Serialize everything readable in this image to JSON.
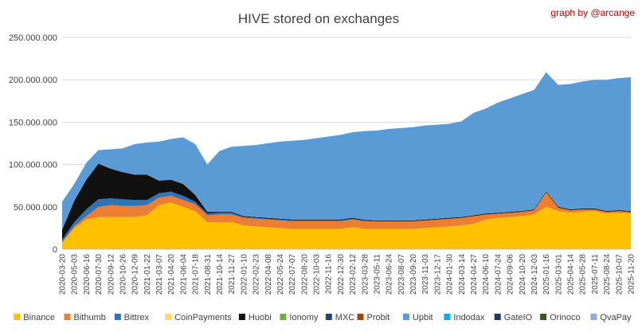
{
  "chart_data": {
    "type": "area",
    "stacked": true,
    "title": "HIVE stored on exchanges",
    "credit": "graph by @arcange",
    "ylim": [
      0,
      250000000
    ],
    "yticks": [
      {
        "value": 0,
        "label": "0"
      },
      {
        "value": 50000000,
        "label": "50.000.000"
      },
      {
        "value": 100000000,
        "label": "100.000.000"
      },
      {
        "value": 150000000,
        "label": "150.000.000"
      },
      {
        "value": 200000000,
        "label": "200.000.000"
      },
      {
        "value": 250000000,
        "label": "250.000.000"
      }
    ],
    "grid": true,
    "legend_position": "bottom",
    "x": [
      "2020-03-20",
      "2020-05-03",
      "2020-06-16",
      "2020-07-30",
      "2020-09-12",
      "2020-10-26",
      "2020-12-09",
      "2021-01-22",
      "2021-03-07",
      "2021-04-20",
      "2021-06-04",
      "2021-07-18",
      "2021-08-31",
      "2021-10-14",
      "2021-11-27",
      "2022-01-10",
      "2022-02-23",
      "2022-04-08",
      "2022-05-24",
      "2022-07-07",
      "2022-08-20",
      "2022-10-03",
      "2022-11-16",
      "2022-12-30",
      "2023-02-12",
      "2023-03-28",
      "2023-05-11",
      "2023-06-24",
      "2023-08-07",
      "2023-09-20",
      "2023-11-03",
      "2023-12-17",
      "2024-01-30",
      "2024-03-14",
      "2024-04-27",
      "2024-06-10",
      "2024-07-24",
      "2024-09-06",
      "2024-10-20",
      "2024-12-03",
      "2025-01-16",
      "2025-03-01",
      "2025-04-14",
      "2025-05-28",
      "2025-07-11",
      "2025-08-24",
      "2025-10-07",
      "2025-11-20"
    ],
    "series": [
      {
        "name": "Binance",
        "color": "#ffc000",
        "values": [
          8000000,
          25000000,
          35000000,
          38000000,
          38000000,
          38000000,
          38000000,
          40000000,
          52000000,
          55000000,
          50000000,
          45000000,
          32000000,
          32000000,
          32000000,
          28000000,
          27000000,
          26000000,
          25000000,
          24000000,
          24000000,
          24000000,
          24000000,
          24000000,
          26000000,
          24000000,
          24000000,
          24000000,
          24000000,
          24000000,
          25000000,
          26000000,
          27000000,
          28000000,
          30000000,
          35000000,
          37000000,
          38000000,
          39000000,
          41000000,
          50000000,
          45000000,
          43000000,
          44000000,
          45000000,
          42000000,
          43000000,
          42000000
        ]
      },
      {
        "name": "Bithumb",
        "color": "#ed7d31",
        "values": [
          0,
          2000000,
          4000000,
          12000000,
          14000000,
          13000000,
          13000000,
          12000000,
          9000000,
          8000000,
          8000000,
          8000000,
          8000000,
          9000000,
          9000000,
          9000000,
          9000000,
          9000000,
          9000000,
          9000000,
          9000000,
          9000000,
          9000000,
          9000000,
          9000000,
          9000000,
          9000000,
          9000000,
          9000000,
          9000000,
          9000000,
          9000000,
          9000000,
          9000000,
          9000000,
          6000000,
          5000000,
          5000000,
          5000000,
          5000000,
          17000000,
          4000000,
          3000000,
          3000000,
          2000000,
          2000000,
          2000000,
          2000000
        ]
      },
      {
        "name": "Bittrex",
        "color": "#2e75b6",
        "values": [
          3000000,
          5000000,
          8000000,
          9000000,
          8000000,
          8000000,
          7000000,
          6000000,
          5000000,
          5000000,
          5000000,
          3000000,
          2000000,
          2000000,
          2000000,
          1000000,
          1000000,
          1000000,
          1000000,
          1000000,
          1000000,
          1000000,
          1000000,
          1000000,
          1000000,
          500000,
          0,
          0,
          0,
          0,
          0,
          0,
          0,
          0,
          0,
          0,
          0,
          0,
          0,
          0,
          0,
          0,
          0,
          0,
          0,
          0,
          0,
          0
        ]
      },
      {
        "name": "CoinPayments",
        "color": "#ffd966",
        "values": [
          0,
          0,
          0,
          0,
          0,
          0,
          0,
          0,
          0,
          0,
          0,
          0,
          0,
          0,
          0,
          0,
          0,
          0,
          0,
          0,
          0,
          0,
          0,
          0,
          0,
          0,
          0,
          0,
          0,
          0,
          0,
          0,
          0,
          0,
          0,
          0,
          0,
          0,
          0,
          0,
          0,
          0,
          0,
          0,
          0,
          0,
          0,
          0
        ]
      },
      {
        "name": "Huobi",
        "color": "#111111",
        "values": [
          12000000,
          25000000,
          35000000,
          42000000,
          35000000,
          32000000,
          30000000,
          30000000,
          15000000,
          14000000,
          14000000,
          8000000,
          2000000,
          1000000,
          1000000,
          1000000,
          1000000,
          1000000,
          1000000,
          1000000,
          1000000,
          1000000,
          1000000,
          1000000,
          1000000,
          1000000,
          1000000,
          1000000,
          1000000,
          1000000,
          1000000,
          1000000,
          1000000,
          1000000,
          1000000,
          1000000,
          1000000,
          1000000,
          1000000,
          1000000,
          1000000,
          1000000,
          1000000,
          1000000,
          1000000,
          1000000,
          1000000,
          1000000
        ]
      },
      {
        "name": "Ionomy",
        "color": "#70ad47",
        "values": [
          0,
          0,
          0,
          0,
          0,
          0,
          0,
          0,
          0,
          0,
          0,
          0,
          0,
          0,
          0,
          0,
          0,
          0,
          0,
          0,
          0,
          0,
          0,
          0,
          0,
          0,
          0,
          0,
          0,
          0,
          0,
          0,
          0,
          0,
          0,
          0,
          0,
          0,
          0,
          0,
          0,
          0,
          0,
          0,
          0,
          0,
          0,
          0
        ]
      },
      {
        "name": "MXC",
        "color": "#264478",
        "values": [
          0,
          0,
          0,
          0,
          0,
          0,
          0,
          0,
          0,
          0,
          0,
          0,
          0,
          0,
          0,
          0,
          0,
          0,
          0,
          0,
          0,
          0,
          0,
          0,
          0,
          0,
          0,
          0,
          0,
          0,
          0,
          0,
          0,
          0,
          0,
          0,
          0,
          0,
          0,
          0,
          0,
          0,
          0,
          0,
          0,
          0,
          0,
          0
        ]
      },
      {
        "name": "Probit",
        "color": "#9e480e",
        "values": [
          0,
          0,
          0,
          0,
          0,
          0,
          0,
          0,
          0,
          0,
          0,
          0,
          0,
          0,
          0,
          0,
          0,
          0,
          0,
          0,
          0,
          0,
          0,
          0,
          0,
          0,
          0,
          0,
          0,
          0,
          0,
          0,
          0,
          0,
          0,
          0,
          0,
          0,
          0,
          0,
          0,
          0,
          0,
          0,
          0,
          0,
          0,
          0
        ]
      },
      {
        "name": "Upbit",
        "color": "#5b9bd5",
        "values": [
          33000000,
          20000000,
          20000000,
          16000000,
          23000000,
          28000000,
          36000000,
          38000000,
          46000000,
          48000000,
          55000000,
          60000000,
          56000000,
          72000000,
          77000000,
          83000000,
          85000000,
          88000000,
          91000000,
          93000000,
          94000000,
          96000000,
          98000000,
          100000000,
          101000000,
          105000000,
          106000000,
          108000000,
          109000000,
          110000000,
          111000000,
          111000000,
          111000000,
          113000000,
          121000000,
          124000000,
          130000000,
          134000000,
          138000000,
          141000000,
          141000000,
          144000000,
          148000000,
          150000000,
          152000000,
          155000000,
          156000000,
          158000000
        ]
      },
      {
        "name": "Indodax",
        "color": "#00b0f0",
        "values": [
          0,
          0,
          0,
          0,
          0,
          0,
          0,
          0,
          0,
          0,
          0,
          0,
          0,
          0,
          0,
          0,
          0,
          0,
          0,
          0,
          0,
          0,
          0,
          0,
          0,
          0,
          0,
          0,
          0,
          0,
          0,
          0,
          0,
          0,
          0,
          0,
          0,
          0,
          0,
          0,
          0,
          0,
          0,
          0,
          0,
          0,
          0,
          0
        ]
      },
      {
        "name": "GateIO",
        "color": "#1f3864",
        "values": [
          0,
          0,
          0,
          0,
          0,
          0,
          0,
          0,
          0,
          0,
          0,
          0,
          0,
          0,
          0,
          0,
          0,
          0,
          0,
          0,
          0,
          0,
          0,
          0,
          0,
          0,
          0,
          0,
          0,
          0,
          0,
          0,
          0,
          0,
          0,
          0,
          0,
          0,
          0,
          0,
          0,
          0,
          0,
          0,
          0,
          0,
          0,
          0
        ]
      },
      {
        "name": "Orinoco",
        "color": "#375623",
        "values": [
          0,
          0,
          0,
          0,
          0,
          0,
          0,
          0,
          0,
          0,
          0,
          0,
          0,
          0,
          0,
          0,
          0,
          0,
          0,
          0,
          0,
          0,
          0,
          0,
          0,
          0,
          0,
          0,
          0,
          0,
          0,
          0,
          0,
          0,
          0,
          0,
          0,
          0,
          0,
          0,
          0,
          0,
          0,
          0,
          0,
          0,
          0,
          0
        ]
      },
      {
        "name": "QvaPay",
        "color": "#8faadc",
        "values": [
          0,
          0,
          0,
          0,
          0,
          0,
          0,
          0,
          0,
          0,
          0,
          0,
          0,
          0,
          0,
          0,
          0,
          0,
          0,
          0,
          0,
          0,
          0,
          0,
          0,
          0,
          0,
          0,
          0,
          0,
          0,
          0,
          0,
          0,
          0,
          0,
          0,
          0,
          0,
          0,
          0,
          0,
          0,
          0,
          0,
          0,
          0,
          0
        ]
      }
    ]
  }
}
